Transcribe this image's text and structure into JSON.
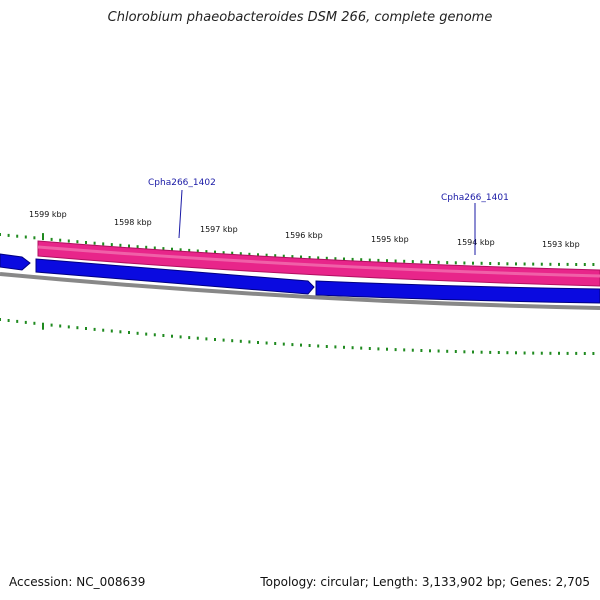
{
  "title": "Chlorobium phaeobacteroides DSM 266, complete genome",
  "accession_text": "Accession: NC_008639",
  "summary_text": "Topology: circular; Length: 3,133,902 bp; Genes: 2,705",
  "colors": {
    "forward_track": "#e8258a",
    "reverse_track": "#0a0ae0",
    "backbone": "#888888",
    "ticks": "#1f8a1f",
    "gene_label": "#1a1aa6"
  },
  "scale_labels": [
    "1599 kbp",
    "1598 kbp",
    "1597 kbp",
    "1596 kbp",
    "1595 kbp",
    "1594 kbp",
    "1593 kbp"
  ],
  "genes": [
    {
      "name": "Cpha266_1402",
      "strand": "forward"
    },
    {
      "name": "Cpha266_1401",
      "strand": "reverse"
    }
  ]
}
